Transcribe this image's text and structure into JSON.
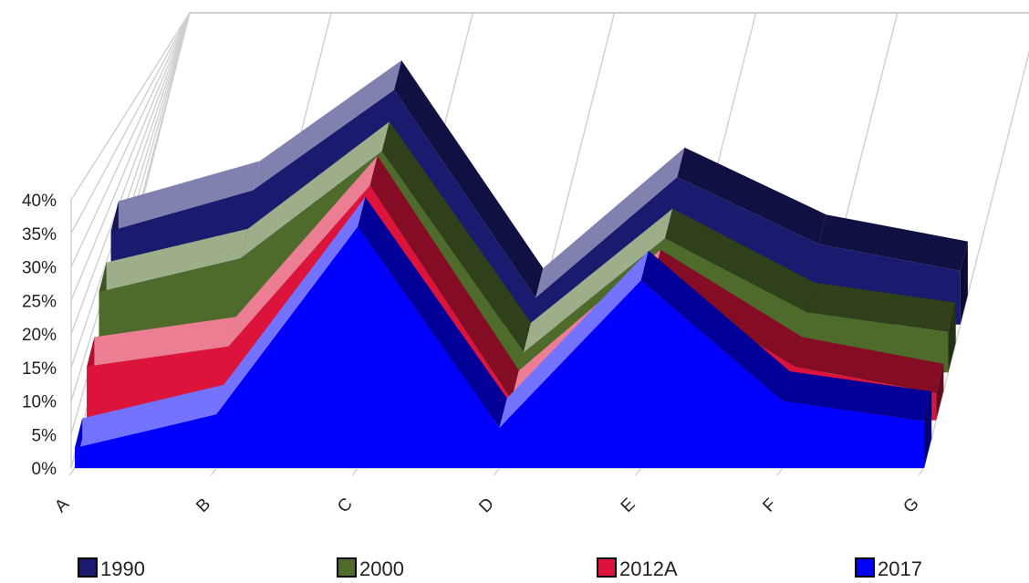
{
  "chart_data": {
    "type": "area",
    "title": "",
    "xlabel": "",
    "ylabel": "",
    "categories": [
      "A",
      "B",
      "C",
      "D",
      "E",
      "F",
      "G"
    ],
    "y_tick_labels": [
      "0%",
      "5%",
      "10%",
      "15%",
      "20%",
      "25%",
      "30%",
      "35%",
      "40%"
    ],
    "ylim": [
      0,
      40
    ],
    "grid": true,
    "legend_position": "bottom",
    "series": [
      {
        "name": "1990",
        "color": "#1a1a6e",
        "values": [
          14,
          20,
          35,
          4,
          22,
          12,
          8
        ]
      },
      {
        "name": "2000",
        "color": "#4e6b2c",
        "values": [
          12,
          17,
          33,
          3,
          20,
          9,
          6
        ]
      },
      {
        "name": "2012A",
        "color": "#dc143c",
        "values": [
          8,
          11,
          35,
          3,
          21,
          8,
          4
        ]
      },
      {
        "name": "2017",
        "color": "#0000ff",
        "values": [
          3,
          8,
          36,
          6,
          28,
          10,
          7
        ]
      }
    ]
  }
}
